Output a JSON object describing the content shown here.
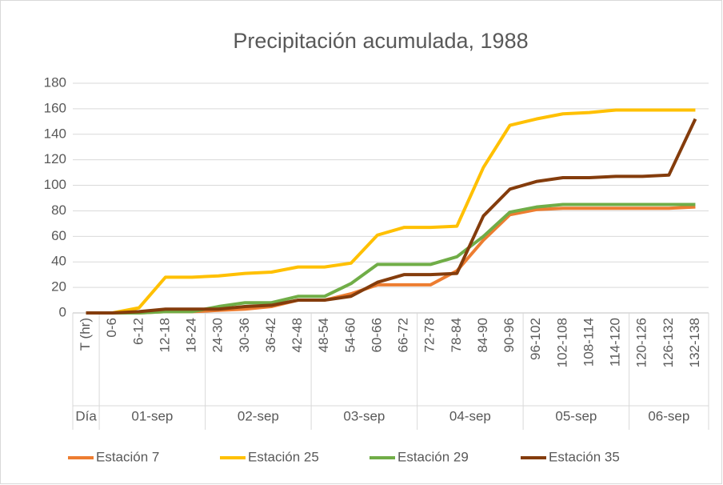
{
  "chart_data": {
    "type": "line",
    "title": "Precipitación acumulada, 1988",
    "categories": [
      "T (hr)",
      "0-6",
      "6-12",
      "12-18",
      "18-24",
      "24-30",
      "30-36",
      "36-42",
      "42-48",
      "48-54",
      "54-60",
      "60-66",
      "66-72",
      "72-78",
      "78-84",
      "84-90",
      "90-96",
      "96-102",
      "102-108",
      "108-114",
      "114-120",
      "120-126",
      "126-132",
      "132-138"
    ],
    "groups": [
      {
        "label": "Día",
        "span": 1
      },
      {
        "label": "01-sep",
        "span": 4
      },
      {
        "label": "02-sep",
        "span": 4
      },
      {
        "label": "03-sep",
        "span": 4
      },
      {
        "label": "04-sep",
        "span": 4
      },
      {
        "label": "05-sep",
        "span": 4
      },
      {
        "label": "06-sep",
        "span": 3
      }
    ],
    "series": [
      {
        "name": "Estación 7",
        "color": "#ed7d31",
        "values": [
          0,
          0,
          0,
          1,
          1,
          2,
          3,
          5,
          10,
          10,
          15,
          22,
          22,
          22,
          33,
          57,
          77,
          81,
          82,
          82,
          82,
          82,
          82,
          83
        ]
      },
      {
        "name": "Estación 25",
        "color": "#ffc000",
        "values": [
          0,
          0,
          4,
          28,
          28,
          29,
          31,
          32,
          36,
          36,
          39,
          61,
          67,
          67,
          68,
          114,
          147,
          152,
          156,
          157,
          159,
          159,
          159,
          159
        ]
      },
      {
        "name": "Estación 29",
        "color": "#70ad47",
        "values": [
          0,
          0,
          0,
          1,
          1,
          5,
          8,
          8,
          13,
          13,
          23,
          38,
          38,
          38,
          44,
          60,
          79,
          83,
          85,
          85,
          85,
          85,
          85,
          85
        ]
      },
      {
        "name": "Estación 35",
        "color": "#843c0c",
        "values": [
          0,
          0,
          1,
          3,
          3,
          3,
          5,
          6,
          10,
          10,
          13,
          24,
          30,
          30,
          31,
          76,
          97,
          103,
          106,
          106,
          107,
          107,
          108,
          152
        ]
      }
    ],
    "ylim": [
      0,
      180
    ],
    "yticks": [
      0,
      20,
      40,
      60,
      80,
      100,
      120,
      140,
      160,
      180
    ],
    "grid": true,
    "legend": "bottom"
  }
}
